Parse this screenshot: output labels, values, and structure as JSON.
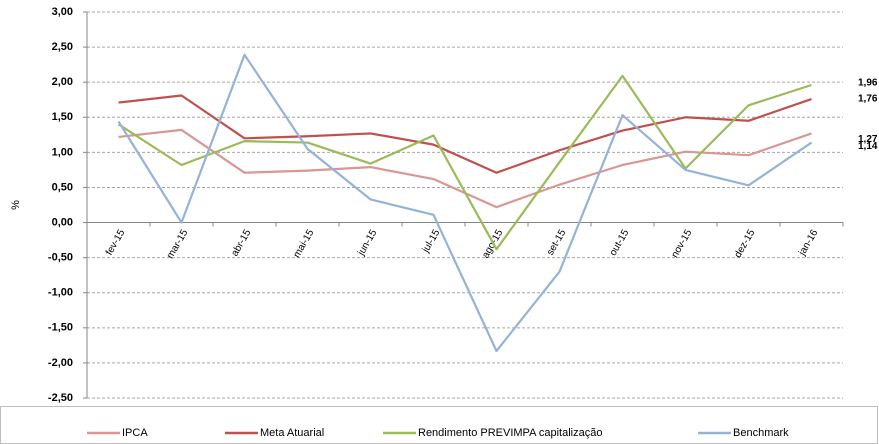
{
  "chart_data": {
    "type": "line",
    "y_label": "%",
    "categories": [
      "fev-15",
      "mar-15",
      "abr-15",
      "mai-15",
      "jun-15",
      "jul-15",
      "ago-15",
      "set-15",
      "out-15",
      "nov-15",
      "dez-15",
      "jan-16"
    ],
    "series": [
      {
        "name": "IPCA",
        "color": "#d99694",
        "values": [
          1.22,
          1.32,
          0.71,
          0.74,
          0.79,
          0.62,
          0.22,
          0.54,
          0.82,
          1.01,
          0.96,
          1.27
        ],
        "value_labels": [
          null,
          null,
          null,
          null,
          null,
          null,
          null,
          null,
          null,
          null,
          null,
          "1,27"
        ]
      },
      {
        "name": "Meta Atuarial",
        "color": "#c0504d",
        "values": [
          1.71,
          1.81,
          1.2,
          1.23,
          1.27,
          1.11,
          0.71,
          1.03,
          1.31,
          1.5,
          1.45,
          1.76
        ],
        "value_labels": [
          null,
          null,
          null,
          null,
          null,
          null,
          null,
          null,
          null,
          null,
          null,
          "1,76"
        ]
      },
      {
        "name": "Rendimento PREVIMPA capitalização",
        "color": "#9bbb59",
        "values": [
          1.4,
          0.82,
          1.16,
          1.14,
          0.84,
          1.24,
          -0.38,
          0.86,
          2.09,
          0.77,
          1.67,
          1.96
        ],
        "value_labels": [
          null,
          null,
          null,
          null,
          null,
          null,
          null,
          null,
          null,
          null,
          null,
          "1,96"
        ]
      },
      {
        "name": "Benchmark",
        "color": "#95b3d7",
        "values": [
          1.44,
          0.0,
          2.39,
          1.05,
          0.33,
          0.11,
          -1.83,
          -0.7,
          1.53,
          0.75,
          0.53,
          1.14
        ],
        "value_labels": [
          null,
          null,
          null,
          null,
          null,
          null,
          null,
          null,
          null,
          null,
          null,
          "1,14"
        ]
      }
    ],
    "ylim": [
      -2.5,
      3.0
    ],
    "yticks": [
      {
        "value": -2.5,
        "label": "-2,50"
      },
      {
        "value": -2.0,
        "label": "-2,00"
      },
      {
        "value": -1.5,
        "label": "-1,50"
      },
      {
        "value": -1.0,
        "label": "-1,00"
      },
      {
        "value": -0.5,
        "label": "-0,50"
      },
      {
        "value": 0,
        "label": "0,00"
      },
      {
        "value": 0.5,
        "label": "0,50"
      },
      {
        "value": 1.0,
        "label": "1,00"
      },
      {
        "value": 1.5,
        "label": "1,50"
      },
      {
        "value": 2.0,
        "label": "2,00"
      },
      {
        "value": 2.5,
        "label": "2,50"
      },
      {
        "value": 3.0,
        "label": "3,00"
      }
    ],
    "grid": true,
    "legend": "bottom"
  }
}
